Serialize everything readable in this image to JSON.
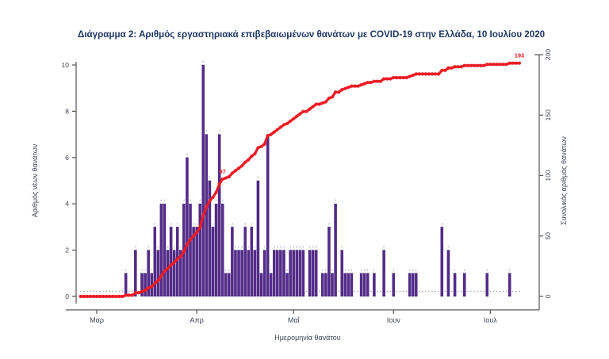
{
  "title": "Διάγραμμα 2: Αριθμός εργαστηριακά επιβεβαιωμένων θανάτων με COVID-19 στην Ελλάδα, 10 Ιουλίου 2020",
  "colors": {
    "title_text": "#1d3763",
    "axis_text": "#3d4257",
    "axis_line": "#555555",
    "bar_fill": "#552A8E",
    "line_red": "#EC1C24",
    "tiny_label": "#9a8fc0"
  },
  "chart_data": {
    "type": "bar",
    "subtype": "daily bars with cumulative line overlay",
    "title": "Διάγραμμα 2: Αριθμός εργαστηριακά επιβεβαιωμένων θανάτων με COVID-19 στην Ελλάδα, 10 Ιουλίου 2020",
    "x_axis": {
      "label": "Ημερομηνία θανάτου",
      "tick_labels": [
        "Μαρ",
        "Απρ",
        "Μαΐ",
        "Ιουν",
        "Ιουλ"
      ],
      "start_date": "2020-02-25",
      "end_date": "2020-07-10"
    },
    "left_axis": {
      "label": "Αριθμός νέων θανάτων",
      "ticks": [
        0,
        2,
        4,
        6,
        8,
        10
      ],
      "range": [
        0,
        10
      ]
    },
    "right_axis": {
      "label": "Συνολικός αριθμός θανάτων",
      "ticks": [
        0,
        50,
        100,
        150,
        200
      ],
      "range": [
        0,
        200
      ]
    },
    "series": [
      {
        "name": "daily_deaths",
        "type": "bar",
        "axis": "left",
        "color": "#552A8E",
        "start_date": "2020-02-25",
        "values": [
          0,
          0,
          0,
          0,
          0,
          0,
          0,
          0,
          0,
          0,
          0,
          0,
          0,
          0,
          1,
          0,
          0,
          2,
          0,
          1,
          1,
          2,
          1,
          3,
          2,
          4,
          4,
          2,
          3,
          2,
          3,
          2,
          4,
          6,
          4,
          3,
          3,
          4,
          10,
          7,
          5,
          3,
          4,
          7,
          4,
          1,
          1,
          3,
          2,
          2,
          2,
          3,
          2,
          3,
          2,
          5,
          1,
          2,
          7,
          1,
          2,
          2,
          2,
          2,
          1,
          2,
          2,
          2,
          2,
          2,
          0,
          2,
          2,
          2,
          0,
          1,
          1,
          3,
          1,
          4,
          0,
          2,
          1,
          1,
          1,
          0,
          0,
          1,
          1,
          1,
          0,
          1,
          0,
          0,
          2,
          0,
          0,
          1,
          0,
          0,
          0,
          0,
          1,
          1,
          1,
          0,
          0,
          0,
          0,
          0,
          0,
          0,
          3,
          0,
          2,
          0,
          1,
          0,
          0,
          1,
          0,
          0,
          0,
          0,
          0,
          0,
          1,
          0,
          0,
          0,
          0,
          0,
          0,
          1,
          0,
          0,
          0
        ]
      },
      {
        "name": "cumulative_deaths",
        "type": "line",
        "axis": "right",
        "color": "#EC1C24",
        "derived": "cumulative_of_daily_deaths",
        "final_value": 193
      }
    ],
    "annotations": [
      {
        "text": "97",
        "series": "cumulative_deaths",
        "point_index": 44,
        "color": "#EC1C24"
      },
      {
        "text": "193",
        "series": "cumulative_deaths",
        "point_index": 136,
        "color": "#EC1C24"
      }
    ]
  }
}
